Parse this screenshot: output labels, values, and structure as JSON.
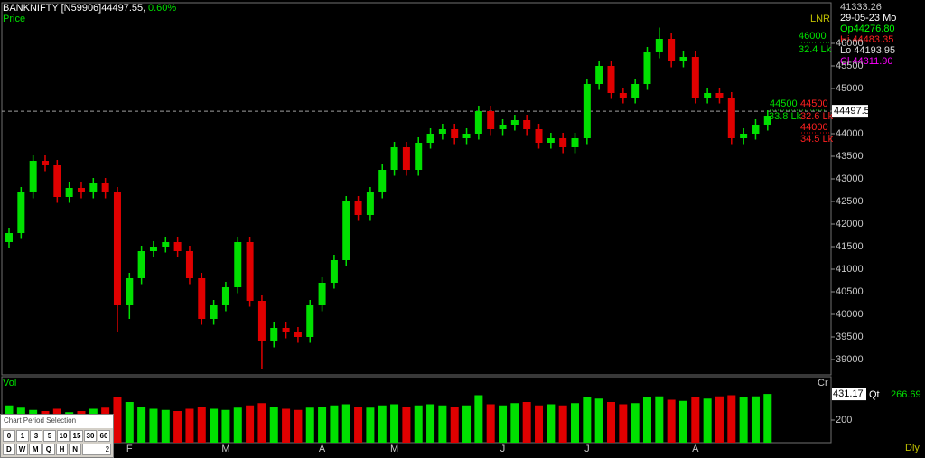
{
  "header": {
    "symbol": "BANKNIFTY [N59906]44497.55,",
    "change": "0.60%",
    "price_label": "Price",
    "volume_label": "Vol",
    "volume_unit": "Cr",
    "indicator": "LNR",
    "periodicity": "Dly",
    "qty_label": "Qt",
    "qty_value": "266.69"
  },
  "info_panel": [
    {
      "text": "41333.26",
      "color": "#c8c8c8"
    },
    {
      "text": "29-05-23 Mo",
      "color": "#ffffff"
    },
    {
      "text": "Op44276.80",
      "color": "#00ff00"
    },
    {
      "text": "Hi 44483.35",
      "color": "#ff2020"
    },
    {
      "text": "Lo 44193.95",
      "color": "#e0e0e0"
    },
    {
      "text": "Cl 44311.90",
      "color": "#ff00ff"
    }
  ],
  "indicator_labels": [
    {
      "text": 46000,
      "color": "#00e000"
    },
    {
      "text": "32.4 Lk",
      "color": "#00e000"
    },
    {
      "text": 44500,
      "color": "#00e000"
    },
    {
      "text": 44500,
      "color": "#ff2020"
    },
    {
      "text": "33.8 Lk",
      "color": "#00e000"
    },
    {
      "text": "32.6 Lk",
      "color": "#ff2020"
    },
    {
      "text": 44000,
      "color": "#ff2020"
    },
    {
      "text": "34.5 Lk",
      "color": "#ff2020"
    }
  ],
  "period_selector": {
    "title": "Chart Period Selection",
    "minutes": [
      "0",
      "1",
      "3",
      "5",
      "10",
      "15",
      "30",
      "60"
    ],
    "periods": [
      "D",
      "W",
      "M",
      "Q",
      "H",
      "N"
    ],
    "count": "2"
  },
  "chart_data": [
    {
      "type": "candlestick",
      "up_color": "#00e000",
      "down_color": "#e00000",
      "grid": false,
      "categories": [
        null,
        null,
        null,
        null,
        null,
        null,
        null,
        null,
        null,
        null,
        "F",
        null,
        null,
        null,
        null,
        null,
        null,
        null,
        "M",
        null,
        null,
        null,
        null,
        null,
        null,
        null,
        "A",
        null,
        null,
        null,
        null,
        null,
        "M",
        null,
        null,
        null,
        null,
        null,
        null,
        null,
        null,
        "J",
        null,
        null,
        null,
        null,
        null,
        null,
        "J",
        null,
        null,
        null,
        null,
        null,
        null,
        null,
        null,
        "A",
        null,
        null,
        null,
        null,
        null,
        null
      ],
      "open": [
        41600,
        41800,
        42700,
        43400,
        43300,
        42600,
        42800,
        42700,
        42900,
        42700,
        40200,
        40800,
        41400,
        41500,
        41600,
        41400,
        40800,
        39900,
        40200,
        40600,
        41600,
        40300,
        39400,
        39700,
        39600,
        39500,
        40200,
        40700,
        41200,
        42500,
        42200,
        42700,
        43200,
        43700,
        43200,
        43800,
        44000,
        44100,
        43900,
        44000,
        44500,
        44100,
        44200,
        44300,
        44100,
        43800,
        43900,
        43700,
        43900,
        45100,
        45500,
        44900,
        44800,
        45100,
        45800,
        46100,
        45600,
        45700,
        44800,
        44900,
        44800,
        43900,
        44000,
        44200
      ],
      "high": [
        41920,
        42820,
        43520,
        43520,
        43420,
        42920,
        42920,
        43020,
        43020,
        42820,
        40920,
        41520,
        41620,
        41720,
        41720,
        41520,
        40920,
        40320,
        40720,
        41720,
        41720,
        40420,
        39820,
        39820,
        39720,
        40320,
        40820,
        41320,
        42620,
        42620,
        42820,
        43320,
        43820,
        43820,
        43920,
        44120,
        44220,
        44220,
        44120,
        44620,
        44620,
        44320,
        44420,
        44420,
        44220,
        44020,
        44020,
        44020,
        45220,
        45620,
        45620,
        45020,
        45220,
        45920,
        46350,
        46220,
        45820,
        45820,
        45020,
        45020,
        44920,
        44120,
        44320,
        44520
      ],
      "low": [
        41470,
        41670,
        42570,
        43170,
        42470,
        42470,
        42570,
        42570,
        42570,
        39600,
        39900,
        40670,
        41270,
        41370,
        41270,
        40670,
        39770,
        39770,
        40070,
        40470,
        40170,
        38800,
        39270,
        39470,
        39370,
        39370,
        40070,
        40570,
        41070,
        42070,
        42070,
        42570,
        43070,
        43070,
        43070,
        43670,
        43870,
        43770,
        43770,
        43870,
        43970,
        43970,
        44070,
        43970,
        43670,
        43670,
        43570,
        43570,
        43770,
        44970,
        44770,
        44670,
        44670,
        44970,
        45670,
        45470,
        45470,
        44670,
        44670,
        44670,
        43770,
        43770,
        43870,
        44070
      ],
      "close": [
        41800,
        42700,
        43400,
        43300,
        42600,
        42800,
        42700,
        42900,
        42700,
        40200,
        40800,
        41400,
        41500,
        41600,
        41400,
        40800,
        39900,
        40200,
        40600,
        41600,
        40300,
        39400,
        39700,
        39600,
        39500,
        40200,
        40700,
        41200,
        42500,
        42200,
        42700,
        43200,
        43700,
        43200,
        43800,
        44000,
        44100,
        43900,
        44000,
        44500,
        44100,
        44200,
        44300,
        44100,
        43800,
        43900,
        43700,
        43900,
        45100,
        45500,
        44900,
        44800,
        45100,
        45800,
        46100,
        45600,
        45700,
        44800,
        44900,
        44800,
        43900,
        44000,
        44200,
        44400
      ],
      "last_price": 44497.5,
      "ylim": [
        38660,
        46900
      ],
      "yticks": [
        39000,
        39500,
        40000,
        40500,
        41000,
        41500,
        42000,
        42500,
        43000,
        43500,
        44000,
        44500,
        45000,
        45500,
        46000
      ]
    },
    {
      "type": "bar",
      "values": [
        330,
        310,
        290,
        280,
        300,
        270,
        280,
        300,
        310,
        400,
        360,
        320,
        300,
        290,
        280,
        300,
        320,
        300,
        290,
        310,
        330,
        350,
        320,
        300,
        290,
        310,
        320,
        330,
        340,
        320,
        310,
        330,
        340,
        320,
        330,
        340,
        330,
        320,
        330,
        420,
        340,
        330,
        350,
        360,
        330,
        340,
        330,
        350,
        400,
        390,
        360,
        340,
        350,
        400,
        410,
        380,
        370,
        400,
        390,
        410,
        420,
        400,
        410,
        431.17
      ],
      "ylim": [
        0,
        576
      ],
      "yticks": [
        200
      ]
    }
  ]
}
